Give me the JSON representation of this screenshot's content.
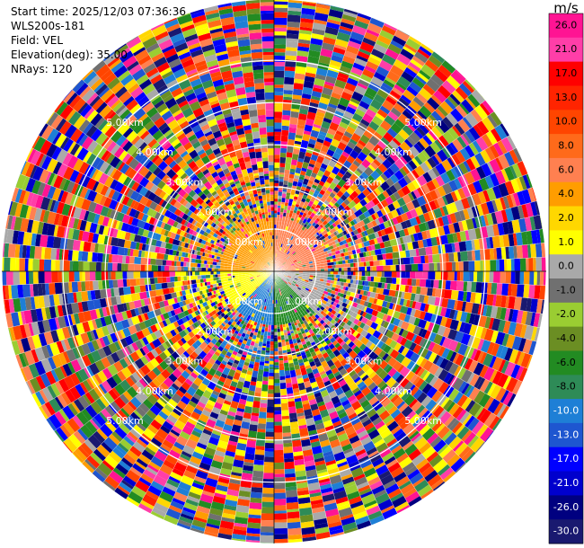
{
  "header": {
    "start_time": "Start time: 2025/12/03 07:36:36",
    "instrument": "WLS200s-181",
    "field": "Field: VEL",
    "elevation": "Elevation(deg): 35.00",
    "nrays": "NRays: 120"
  },
  "colorbar": {
    "unit": "m/s",
    "ticks": [
      "26.0",
      "21.0",
      "17.0",
      "13.0",
      "10.0",
      "8.0",
      "6.0",
      "4.0",
      "2.0",
      "1.0",
      "0.0",
      "-1.0",
      "-2.0",
      "-4.0",
      "-6.0",
      "-8.0",
      "-10.0",
      "-13.0",
      "-17.0",
      "-21.0",
      "-26.0",
      "-30.0"
    ],
    "colors": [
      "#ff1493",
      "#ff3ea8",
      "#ff0000",
      "#ff2400",
      "#ff4500",
      "#ff6a1a",
      "#ff8050",
      "#ff9d00",
      "#ffd700",
      "#ffff00",
      "#a9a9a9",
      "#707070",
      "#9acd32",
      "#6b8e23",
      "#228b22",
      "#2e8b57",
      "#1e7fd6",
      "#1e56d0",
      "#0000ff",
      "#0000cd",
      "#000080",
      "#191970"
    ]
  },
  "chart_data": {
    "type": "ppi",
    "field": "VEL",
    "units": "m/s",
    "elevation_deg": 35.0,
    "n_rays": 120,
    "range_rings_km": [
      1.0,
      2.0,
      3.0,
      4.0,
      5.0
    ],
    "ring_labels": [
      "1.00km",
      "2.00km",
      "3.00km",
      "4.00km",
      "5.00km"
    ],
    "max_range_km": 6.45,
    "value_range": [
      -30.0,
      26.0
    ],
    "near_range_sectors": [
      {
        "azimuth_deg": [
          0,
          90
        ],
        "velocity": 6.0
      },
      {
        "azimuth_deg": [
          90,
          135
        ],
        "velocity": 0.0
      },
      {
        "azimuth_deg": [
          135,
          180
        ],
        "velocity": -6.0
      },
      {
        "azimuth_deg": [
          180,
          225
        ],
        "velocity": -10.0
      },
      {
        "azimuth_deg": [
          225,
          270
        ],
        "velocity": 1.0
      },
      {
        "azimuth_deg": [
          270,
          360
        ],
        "velocity": 4.0
      }
    ]
  }
}
